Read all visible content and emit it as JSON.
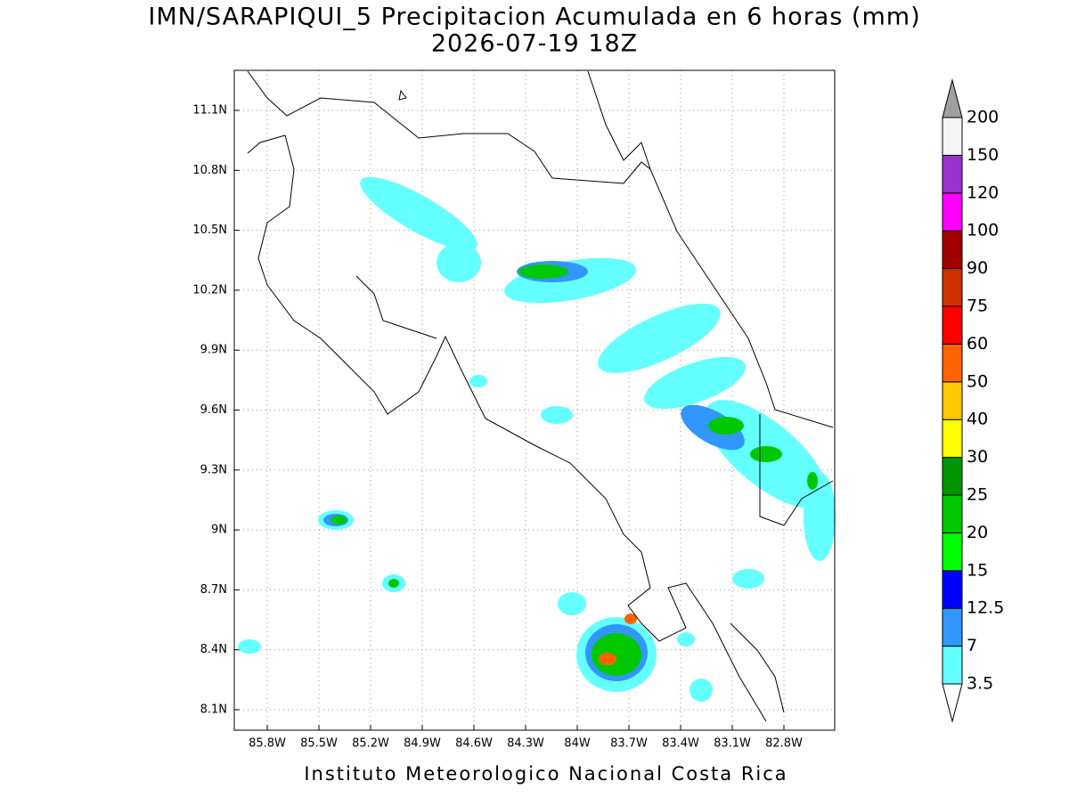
{
  "title": [
    "IMN/SARAPIQUI_5 Precipitacion Acumulada en 6 horas (mm)",
    "2026-07-19 18Z"
  ],
  "map": {
    "lat_ticks": [
      "11.1N",
      "10.8N",
      "10.5N",
      "10.2N",
      "9.9N",
      "9.6N",
      "9.3N",
      "9N",
      "8.7N",
      "8.4N",
      "8.1N"
    ],
    "lon_ticks": [
      "85.8W",
      "85.5W",
      "85.2W",
      "84.9W",
      "84.6W",
      "84.3W",
      "84W",
      "83.7W",
      "83.4W",
      "83.1W",
      "82.8W"
    ]
  },
  "colorbar": {
    "levels": [
      "3.5",
      "7",
      "12.5",
      "15",
      "20",
      "25",
      "30",
      "40",
      "50",
      "60",
      "75",
      "90",
      "100",
      "120",
      "150",
      "200"
    ],
    "colors": [
      "#ffffff",
      "#64ffff",
      "#3296ff",
      "#0000ff",
      "#00ff00",
      "#00c800",
      "#009600",
      "#ffff00",
      "#ffc800",
      "#ff6400",
      "#ff0000",
      "#d03000",
      "#a00000",
      "#ff00ff",
      "#9a32cd",
      "#f5f5f5",
      "#a0a0a0"
    ]
  },
  "credit": "Instituto Meteorologico Nacional Costa Rica"
}
